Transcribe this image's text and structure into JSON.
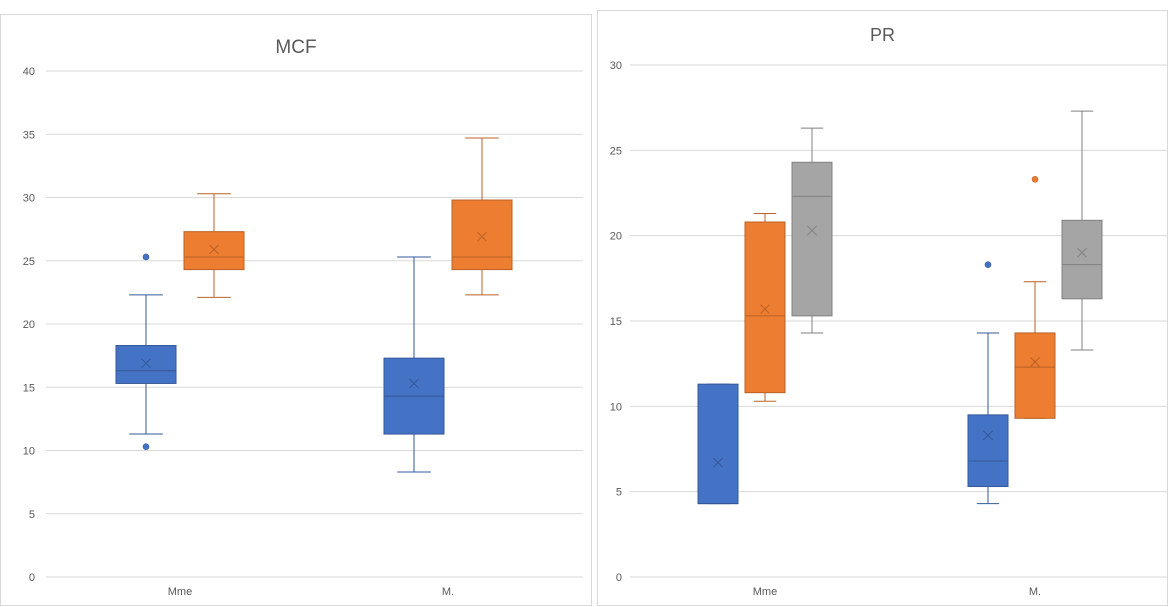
{
  "chart_data": [
    {
      "type": "box",
      "title": "MCF",
      "categories": [
        "Mme",
        "M."
      ],
      "ylim": [
        0,
        40
      ],
      "yticks": [
        0,
        5,
        10,
        15,
        20,
        25,
        30,
        35,
        40
      ],
      "grid": true,
      "series": [
        {
          "color": "#4472c4",
          "boxes": [
            {
              "min": 11.3,
              "q1": 15.3,
              "median": 16.3,
              "q3": 18.3,
              "max": 22.3,
              "mean": 16.9,
              "outliers": [
                10.3,
                25.3
              ]
            },
            {
              "min": 8.3,
              "q1": 11.3,
              "median": 14.3,
              "q3": 17.3,
              "max": 25.3,
              "mean": 15.3,
              "outliers": []
            }
          ]
        },
        {
          "color": "#ed7d31",
          "boxes": [
            {
              "min": 22.1,
              "q1": 24.3,
              "median": 25.3,
              "q3": 27.3,
              "max": 30.3,
              "mean": 25.9,
              "outliers": []
            },
            {
              "min": 22.3,
              "q1": 24.3,
              "median": 25.3,
              "q3": 29.8,
              "max": 34.7,
              "mean": 26.9,
              "outliers": []
            }
          ]
        }
      ]
    },
    {
      "type": "box",
      "title": "PR",
      "categories": [
        "Mme",
        "M."
      ],
      "ylim": [
        0,
        30
      ],
      "yticks": [
        0,
        5,
        10,
        15,
        20,
        25,
        30
      ],
      "grid": true,
      "series": [
        {
          "color": "#4472c4",
          "boxes": [
            {
              "min": 4.3,
              "q1": 4.3,
              "median": 4.3,
              "q3": 11.3,
              "max": 11.3,
              "mean": 6.7,
              "outliers": []
            },
            {
              "min": 4.3,
              "q1": 5.3,
              "median": 6.8,
              "q3": 9.5,
              "max": 14.3,
              "mean": 8.3,
              "outliers": [
                18.3
              ]
            }
          ]
        },
        {
          "color": "#ed7d31",
          "boxes": [
            {
              "min": 10.3,
              "q1": 10.8,
              "median": 15.3,
              "q3": 20.8,
              "max": 21.3,
              "mean": 15.7,
              "outliers": []
            },
            {
              "min": 9.3,
              "q1": 9.3,
              "median": 12.3,
              "q3": 14.3,
              "max": 17.3,
              "mean": 12.6,
              "outliers": [
                23.3
              ]
            }
          ]
        },
        {
          "color": "#a5a5a5",
          "boxes": [
            {
              "min": 14.3,
              "q1": 15.3,
              "median": 22.3,
              "q3": 24.3,
              "max": 26.3,
              "mean": 20.3,
              "outliers": []
            },
            {
              "min": 13.3,
              "q1": 16.3,
              "median": 18.3,
              "q3": 20.9,
              "max": 27.3,
              "mean": 19.0,
              "outliers": []
            }
          ]
        }
      ]
    }
  ]
}
